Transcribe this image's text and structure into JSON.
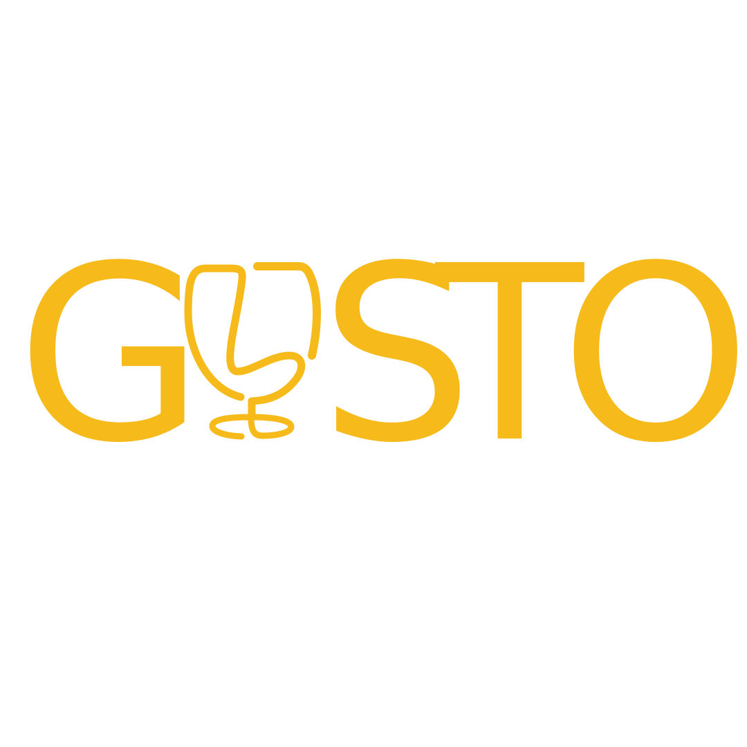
{
  "logo": {
    "wordmark": "GUSTO",
    "letters": [
      "G",
      "U",
      "S",
      "T",
      "O"
    ],
    "u_icon": "wine-glass-icon",
    "color": "#F6BA1B"
  }
}
